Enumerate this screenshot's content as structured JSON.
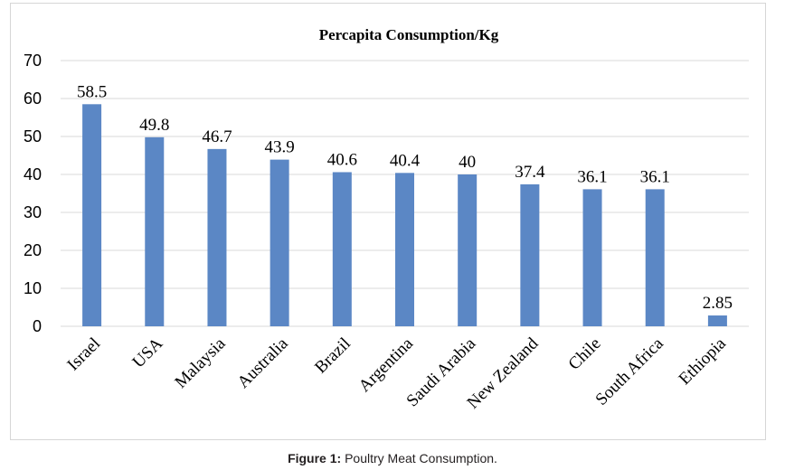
{
  "chart_data": {
    "type": "bar",
    "title": "Percapita Consumption/Kg",
    "categories": [
      "Israel",
      "USA",
      "Malaysia",
      "Australia",
      "Brazil",
      "Argentina",
      "Saudi Arabia",
      "New Zealand",
      "Chile",
      "South Africa",
      "Ethiopia"
    ],
    "values": [
      58.5,
      49.8,
      46.7,
      43.9,
      40.6,
      40.4,
      40,
      37.4,
      36.1,
      36.1,
      2.85
    ],
    "data_labels": [
      "58.5",
      "49.8",
      "46.7",
      "43.9",
      "40.6",
      "40.4",
      "40",
      "37.4",
      "36.1",
      "36.1",
      "2.85"
    ],
    "ylim": [
      0,
      70
    ],
    "yticks": [
      0,
      10,
      20,
      30,
      40,
      50,
      60,
      70
    ],
    "grid": true,
    "bar_color": "#5b87c5",
    "grid_color": "#d9d9d9"
  },
  "caption": {
    "label": "Figure 1:",
    "text": " Poultry Meat Consumption."
  }
}
